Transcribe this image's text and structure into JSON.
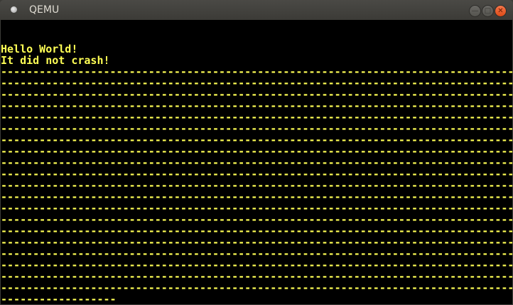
{
  "window": {
    "title": "QEMU",
    "minimize_icon": "minimize-icon",
    "maximize_icon": "maximize-icon",
    "close_icon": "close-icon"
  },
  "screen": {
    "text_color": "#ffff55",
    "lines": [
      "",
      "",
      "Hello World!",
      "It did not crash!",
      "--------------------------------------------------------------------------------",
      "--------------------------------------------------------------------------------",
      "--------------------------------------------------------------------------------",
      "--------------------------------------------------------------------------------",
      "--------------------------------------------------------------------------------",
      "--------------------------------------------------------------------------------",
      "--------------------------------------------------------------------------------",
      "--------------------------------------------------------------------------------",
      "--------------------------------------------------------------------------------",
      "--------------------------------------------------------------------------------",
      "--------------------------------------------------------------------------------",
      "--------------------------------------------------------------------------------",
      "--------------------------------------------------------------------------------",
      "--------------------------------------------------------------------------------",
      "--------------------------------------------------------------------------------",
      "--------------------------------------------------------------------------------",
      "--------------------------------------------------------------------------------",
      "--------------------------------------------------------------------------------",
      "--------------------------------------------------------------------------------",
      "--------------------------------------------------------------------------------",
      "------------------"
    ]
  }
}
